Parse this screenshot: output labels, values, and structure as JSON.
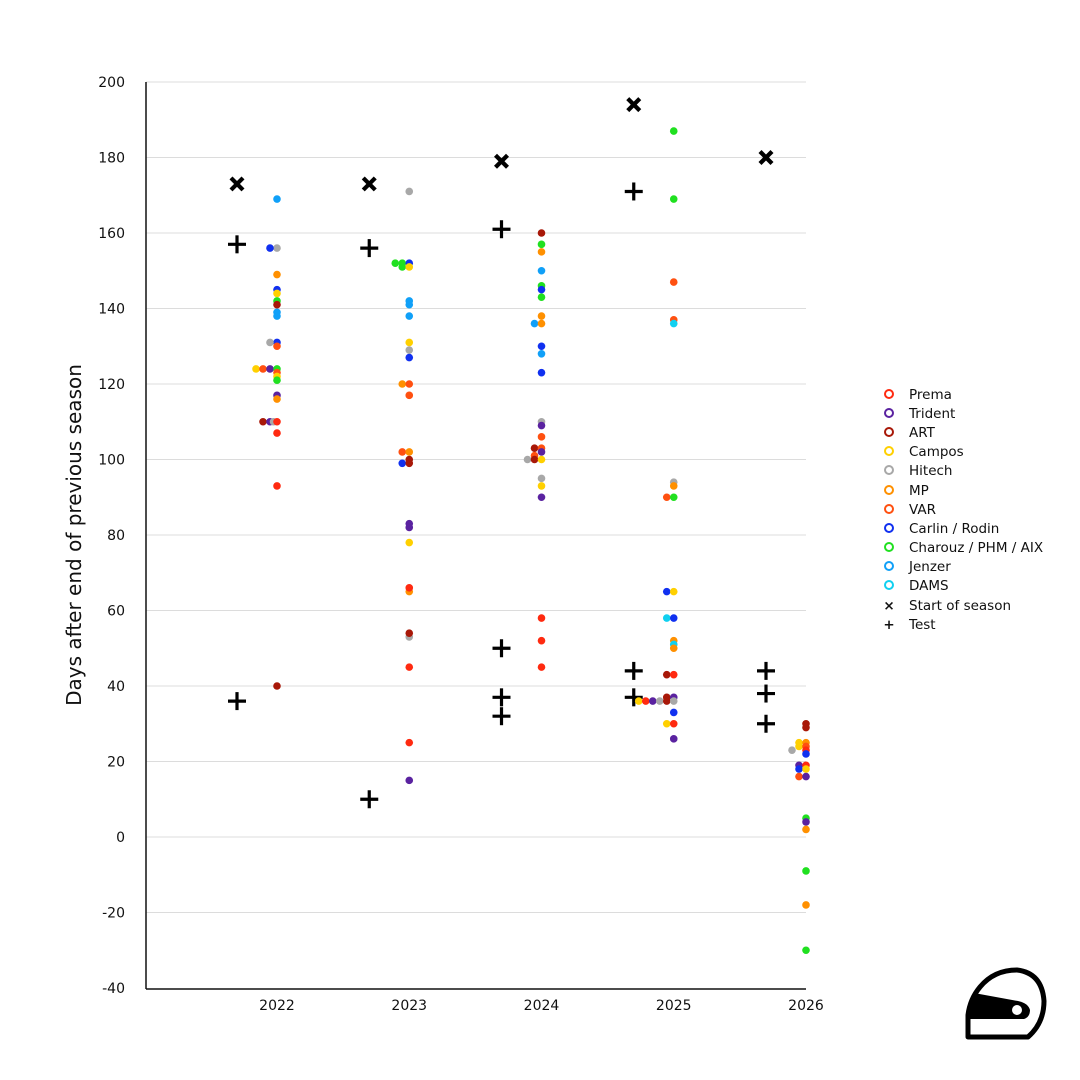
{
  "chart_data": {
    "type": "scatter",
    "title": "",
    "xlabel": "",
    "ylabel": "Days after end of previous season",
    "ylim": [
      -40,
      200
    ],
    "yticks": [
      "200",
      "180",
      "160",
      "140",
      "120",
      "100",
      "80",
      "60",
      "40",
      "20",
      "0",
      "-20",
      "-40"
    ],
    "ytick_values": [
      200,
      180,
      160,
      140,
      120,
      100,
      80,
      60,
      40,
      20,
      0,
      -20,
      -40
    ],
    "xticks": [
      "2022",
      "2023",
      "2024",
      "2025",
      "2026"
    ],
    "xtick_values": [
      2022,
      2023,
      2024,
      2025,
      2026
    ],
    "grid": "horizontal",
    "legend_position": "right",
    "teams": [
      {
        "name": "Prema",
        "color": "#ff2a10"
      },
      {
        "name": "Trident",
        "color": "#5a22a0"
      },
      {
        "name": "ART",
        "color": "#a81808"
      },
      {
        "name": "Campos",
        "color": "#ffd000"
      },
      {
        "name": "Hitech",
        "color": "#a8a8a8"
      },
      {
        "name": "MP",
        "color": "#ff9000"
      },
      {
        "name": "VAR",
        "color": "#ff5010"
      },
      {
        "name": "Carlin / Rodin",
        "color": "#1030f0"
      },
      {
        "name": "Charouz / PHM / AIX",
        "color": "#20e020"
      },
      {
        "name": "Jenzer",
        "color": "#10a0f8"
      },
      {
        "name": "DAMS",
        "color": "#10d0f0"
      }
    ],
    "markers": [
      {
        "name": "Start of season",
        "symbol": "×"
      },
      {
        "name": "Test",
        "symbol": "+"
      }
    ],
    "start_of_season": [
      {
        "season": 2022,
        "days": 173
      },
      {
        "season": 2023,
        "days": 173
      },
      {
        "season": 2024,
        "days": 179
      },
      {
        "season": 2025,
        "days": 194
      },
      {
        "season": 2026,
        "days": 180
      }
    ],
    "tests": [
      {
        "season": 2022,
        "days": 157
      },
      {
        "season": 2022,
        "days": 36
      },
      {
        "season": 2023,
        "days": 156
      },
      {
        "season": 2023,
        "days": 10
      },
      {
        "season": 2024,
        "days": 161
      },
      {
        "season": 2024,
        "days": 50
      },
      {
        "season": 2024,
        "days": 37
      },
      {
        "season": 2024,
        "days": 32
      },
      {
        "season": 2025,
        "days": 171
      },
      {
        "season": 2025,
        "days": 44
      },
      {
        "season": 2025,
        "days": 37
      },
      {
        "season": 2026,
        "days": 44
      },
      {
        "season": 2026,
        "days": 38
      },
      {
        "season": 2026,
        "days": 30
      }
    ],
    "points": [
      {
        "season": 2022,
        "team": "Jenzer",
        "days": 169,
        "off": 0
      },
      {
        "season": 2022,
        "team": "Hitech",
        "days": 156,
        "off": 0
      },
      {
        "season": 2022,
        "team": "Carlin / Rodin",
        "days": 156,
        "off": -1
      },
      {
        "season": 2022,
        "team": "MP",
        "days": 149,
        "off": 0
      },
      {
        "season": 2022,
        "team": "Carlin / Rodin",
        "days": 145,
        "off": 0
      },
      {
        "season": 2022,
        "team": "Campos",
        "days": 144,
        "off": 0
      },
      {
        "season": 2022,
        "team": "Charouz / PHM / AIX",
        "days": 142,
        "off": 0
      },
      {
        "season": 2022,
        "team": "ART",
        "days": 141,
        "off": 0
      },
      {
        "season": 2022,
        "team": "Jenzer",
        "days": 139,
        "off": 0
      },
      {
        "season": 2022,
        "team": "Jenzer",
        "days": 138,
        "off": 0
      },
      {
        "season": 2022,
        "team": "Carlin / Rodin",
        "days": 131,
        "off": 0
      },
      {
        "season": 2022,
        "team": "Hitech",
        "days": 131,
        "off": -1
      },
      {
        "season": 2022,
        "team": "VAR",
        "days": 130,
        "off": 0
      },
      {
        "season": 2022,
        "team": "Campos",
        "days": 124,
        "off": -3
      },
      {
        "season": 2022,
        "team": "VAR",
        "days": 124,
        "off": -2
      },
      {
        "season": 2022,
        "team": "Trident",
        "days": 124,
        "off": -1
      },
      {
        "season": 2022,
        "team": "Charouz / PHM / AIX",
        "days": 124,
        "off": 0
      },
      {
        "season": 2022,
        "team": "VAR",
        "days": 123,
        "off": 0
      },
      {
        "season": 2022,
        "team": "Campos",
        "days": 122,
        "off": 0
      },
      {
        "season": 2022,
        "team": "Charouz / PHM / AIX",
        "days": 121,
        "off": 0
      },
      {
        "season": 2022,
        "team": "Trident",
        "days": 117,
        "off": 0
      },
      {
        "season": 2022,
        "team": "MP",
        "days": 116,
        "off": 0
      },
      {
        "season": 2022,
        "team": "ART",
        "days": 110,
        "off": -2
      },
      {
        "season": 2022,
        "team": "Trident",
        "days": 110,
        "off": -1
      },
      {
        "season": 2022,
        "team": "Hitech",
        "days": 110,
        "off": -0.5
      },
      {
        "season": 2022,
        "team": "Prema",
        "days": 110,
        "off": 0
      },
      {
        "season": 2022,
        "team": "Prema",
        "days": 107,
        "off": 0
      },
      {
        "season": 2022,
        "team": "Prema",
        "days": 93,
        "off": 0
      },
      {
        "season": 2022,
        "team": "ART",
        "days": 40,
        "off": 0
      },
      {
        "season": 2023,
        "team": "Hitech",
        "days": 171,
        "off": 0
      },
      {
        "season": 2023,
        "team": "Charouz / PHM / AIX",
        "days": 152,
        "off": -2
      },
      {
        "season": 2023,
        "team": "Charouz / PHM / AIX",
        "days": 152,
        "off": -1
      },
      {
        "season": 2023,
        "team": "Charouz / PHM / AIX",
        "days": 151,
        "off": -1
      },
      {
        "season": 2023,
        "team": "Carlin / Rodin",
        "days": 152,
        "off": 0
      },
      {
        "season": 2023,
        "team": "Campos",
        "days": 151,
        "off": 0
      },
      {
        "season": 2023,
        "team": "Jenzer",
        "days": 142,
        "off": 0
      },
      {
        "season": 2023,
        "team": "Jenzer",
        "days": 141,
        "off": 0
      },
      {
        "season": 2023,
        "team": "Jenzer",
        "days": 138,
        "off": 0
      },
      {
        "season": 2023,
        "team": "Campos",
        "days": 131,
        "off": 0
      },
      {
        "season": 2023,
        "team": "Hitech",
        "days": 129,
        "off": 0
      },
      {
        "season": 2023,
        "team": "Carlin / Rodin",
        "days": 127,
        "off": 0
      },
      {
        "season": 2023,
        "team": "MP",
        "days": 120,
        "off": -1
      },
      {
        "season": 2023,
        "team": "VAR",
        "days": 120,
        "off": 0
      },
      {
        "season": 2023,
        "team": "VAR",
        "days": 117,
        "off": 0
      },
      {
        "season": 2023,
        "team": "VAR",
        "days": 102,
        "off": -1
      },
      {
        "season": 2023,
        "team": "MP",
        "days": 102,
        "off": 0
      },
      {
        "season": 2023,
        "team": "Carlin / Rodin",
        "days": 99,
        "off": -1
      },
      {
        "season": 2023,
        "team": "ART",
        "days": 100,
        "off": 0
      },
      {
        "season": 2023,
        "team": "ART",
        "days": 99,
        "off": 0
      },
      {
        "season": 2023,
        "team": "Trident",
        "days": 83,
        "off": 0
      },
      {
        "season": 2023,
        "team": "Trident",
        "days": 82,
        "off": 0
      },
      {
        "season": 2023,
        "team": "Campos",
        "days": 78,
        "off": 0
      },
      {
        "season": 2023,
        "team": "MP",
        "days": 65,
        "off": 0
      },
      {
        "season": 2023,
        "team": "Prema",
        "days": 66,
        "off": 0
      },
      {
        "season": 2023,
        "team": "Hitech",
        "days": 53,
        "off": 0
      },
      {
        "season": 2023,
        "team": "ART",
        "days": 54,
        "off": 0
      },
      {
        "season": 2023,
        "team": "Prema",
        "days": 45,
        "off": 0
      },
      {
        "season": 2023,
        "team": "Prema",
        "days": 25,
        "off": 0
      },
      {
        "season": 2023,
        "team": "Trident",
        "days": 15,
        "off": 0
      },
      {
        "season": 2024,
        "team": "ART",
        "days": 160,
        "off": 0
      },
      {
        "season": 2024,
        "team": "Charouz / PHM / AIX",
        "days": 157,
        "off": 0
      },
      {
        "season": 2024,
        "team": "MP",
        "days": 155,
        "off": 0
      },
      {
        "season": 2024,
        "team": "Jenzer",
        "days": 150,
        "off": 0
      },
      {
        "season": 2024,
        "team": "Charouz / PHM / AIX",
        "days": 146,
        "off": 0
      },
      {
        "season": 2024,
        "team": "Carlin / Rodin",
        "days": 145,
        "off": 0
      },
      {
        "season": 2024,
        "team": "Charouz / PHM / AIX",
        "days": 143,
        "off": 0
      },
      {
        "season": 2024,
        "team": "MP",
        "days": 138,
        "off": 0
      },
      {
        "season": 2024,
        "team": "Jenzer",
        "days": 136,
        "off": -1
      },
      {
        "season": 2024,
        "team": "MP",
        "days": 136,
        "off": 0
      },
      {
        "season": 2024,
        "team": "Carlin / Rodin",
        "days": 130,
        "off": 0
      },
      {
        "season": 2024,
        "team": "Jenzer",
        "days": 128,
        "off": 0
      },
      {
        "season": 2024,
        "team": "Carlin / Rodin",
        "days": 123,
        "off": 0
      },
      {
        "season": 2024,
        "team": "Hitech",
        "days": 110,
        "off": 0
      },
      {
        "season": 2024,
        "team": "Trident",
        "days": 109,
        "off": 0
      },
      {
        "season": 2024,
        "team": "VAR",
        "days": 106,
        "off": 0
      },
      {
        "season": 2024,
        "team": "ART",
        "days": 103,
        "off": -1
      },
      {
        "season": 2024,
        "team": "VAR",
        "days": 103,
        "off": 0
      },
      {
        "season": 2024,
        "team": "Trident",
        "days": 102,
        "off": 0
      },
      {
        "season": 2024,
        "team": "VAR",
        "days": 101,
        "off": -1
      },
      {
        "season": 2024,
        "team": "Hitech",
        "days": 100,
        "off": -2
      },
      {
        "season": 2024,
        "team": "ART",
        "days": 100,
        "off": -1
      },
      {
        "season": 2024,
        "team": "Campos",
        "days": 100,
        "off": 0
      },
      {
        "season": 2024,
        "team": "Hitech",
        "days": 95,
        "off": 0
      },
      {
        "season": 2024,
        "team": "Campos",
        "days": 93,
        "off": 0
      },
      {
        "season": 2024,
        "team": "Trident",
        "days": 90,
        "off": 0
      },
      {
        "season": 2024,
        "team": "Prema",
        "days": 58,
        "off": 0
      },
      {
        "season": 2024,
        "team": "Prema",
        "days": 52,
        "off": 0
      },
      {
        "season": 2024,
        "team": "Prema",
        "days": 45,
        "off": 0
      },
      {
        "season": 2025,
        "team": "Charouz / PHM / AIX",
        "days": 187,
        "off": 0
      },
      {
        "season": 2025,
        "team": "Charouz / PHM / AIX",
        "days": 169,
        "off": 0
      },
      {
        "season": 2025,
        "team": "VAR",
        "days": 147,
        "off": 0
      },
      {
        "season": 2025,
        "team": "VAR",
        "days": 137,
        "off": 0
      },
      {
        "season": 2025,
        "team": "DAMS",
        "days": 136,
        "off": 0
      },
      {
        "season": 2025,
        "team": "Hitech",
        "days": 94,
        "off": 0
      },
      {
        "season": 2025,
        "team": "MP",
        "days": 93,
        "off": 0
      },
      {
        "season": 2025,
        "team": "VAR",
        "days": 90,
        "off": -1
      },
      {
        "season": 2025,
        "team": "Charouz / PHM / AIX",
        "days": 90,
        "off": 0
      },
      {
        "season": 2025,
        "team": "Carlin / Rodin",
        "days": 65,
        "off": -1
      },
      {
        "season": 2025,
        "team": "Campos",
        "days": 65,
        "off": 0
      },
      {
        "season": 2025,
        "team": "DAMS",
        "days": 58,
        "off": -1
      },
      {
        "season": 2025,
        "team": "Carlin / Rodin",
        "days": 58,
        "off": 0
      },
      {
        "season": 2025,
        "team": "MP",
        "days": 52,
        "off": 0
      },
      {
        "season": 2025,
        "team": "DAMS",
        "days": 51,
        "off": 0
      },
      {
        "season": 2025,
        "team": "MP",
        "days": 50,
        "off": 0
      },
      {
        "season": 2025,
        "team": "ART",
        "days": 43,
        "off": -1
      },
      {
        "season": 2025,
        "team": "Prema",
        "days": 43,
        "off": 0
      },
      {
        "season": 2025,
        "team": "Campos",
        "days": 36,
        "off": -5
      },
      {
        "season": 2025,
        "team": "Prema",
        "days": 36,
        "off": -4
      },
      {
        "season": 2025,
        "team": "Trident",
        "days": 36,
        "off": -3
      },
      {
        "season": 2025,
        "team": "Hitech",
        "days": 36,
        "off": -2
      },
      {
        "season": 2025,
        "team": "ART",
        "days": 37,
        "off": -1
      },
      {
        "season": 2025,
        "team": "ART",
        "days": 36,
        "off": -1
      },
      {
        "season": 2025,
        "team": "Trident",
        "days": 37,
        "off": 0
      },
      {
        "season": 2025,
        "team": "Hitech",
        "days": 36,
        "off": 0
      },
      {
        "season": 2025,
        "team": "Carlin / Rodin",
        "days": 33,
        "off": 0
      },
      {
        "season": 2025,
        "team": "Campos",
        "days": 30,
        "off": -1
      },
      {
        "season": 2025,
        "team": "Prema",
        "days": 30,
        "off": 0
      },
      {
        "season": 2025,
        "team": "Trident",
        "days": 26,
        "off": 0
      },
      {
        "season": 2026,
        "team": "ART",
        "days": 30,
        "off": 0
      },
      {
        "season": 2026,
        "team": "ART",
        "days": 29,
        "off": 0
      },
      {
        "season": 2026,
        "team": "Campos",
        "days": 25,
        "off": -1
      },
      {
        "season": 2026,
        "team": "MP",
        "days": 25,
        "off": 0
      },
      {
        "season": 2026,
        "team": "Campos",
        "days": 24,
        "off": -1
      },
      {
        "season": 2026,
        "team": "VAR",
        "days": 24,
        "off": 0
      },
      {
        "season": 2026,
        "team": "Hitech",
        "days": 23,
        "off": -2
      },
      {
        "season": 2026,
        "team": "Prema",
        "days": 23,
        "off": 0
      },
      {
        "season": 2026,
        "team": "Carlin / Rodin",
        "days": 22,
        "off": 0
      },
      {
        "season": 2026,
        "team": "Trident",
        "days": 19,
        "off": -1
      },
      {
        "season": 2026,
        "team": "Prema",
        "days": 19,
        "off": 0
      },
      {
        "season": 2026,
        "team": "Carlin / Rodin",
        "days": 18,
        "off": -1
      },
      {
        "season": 2026,
        "team": "Campos",
        "days": 18,
        "off": 0
      },
      {
        "season": 2026,
        "team": "VAR",
        "days": 16,
        "off": -1
      },
      {
        "season": 2026,
        "team": "Trident",
        "days": 16,
        "off": 0
      },
      {
        "season": 2026,
        "team": "Charouz / PHM / AIX",
        "days": 5,
        "off": 0
      },
      {
        "season": 2026,
        "team": "Trident",
        "days": 4,
        "off": 0
      },
      {
        "season": 2026,
        "team": "MP",
        "days": 2,
        "off": 0
      },
      {
        "season": 2026,
        "team": "Charouz / PHM / AIX",
        "days": -9,
        "off": 0
      },
      {
        "season": 2026,
        "team": "MP",
        "days": -18,
        "off": 0
      },
      {
        "season": 2026,
        "team": "Charouz / PHM / AIX",
        "days": -30,
        "off": 0
      }
    ]
  },
  "logo": {
    "name": "helmet-logo"
  }
}
